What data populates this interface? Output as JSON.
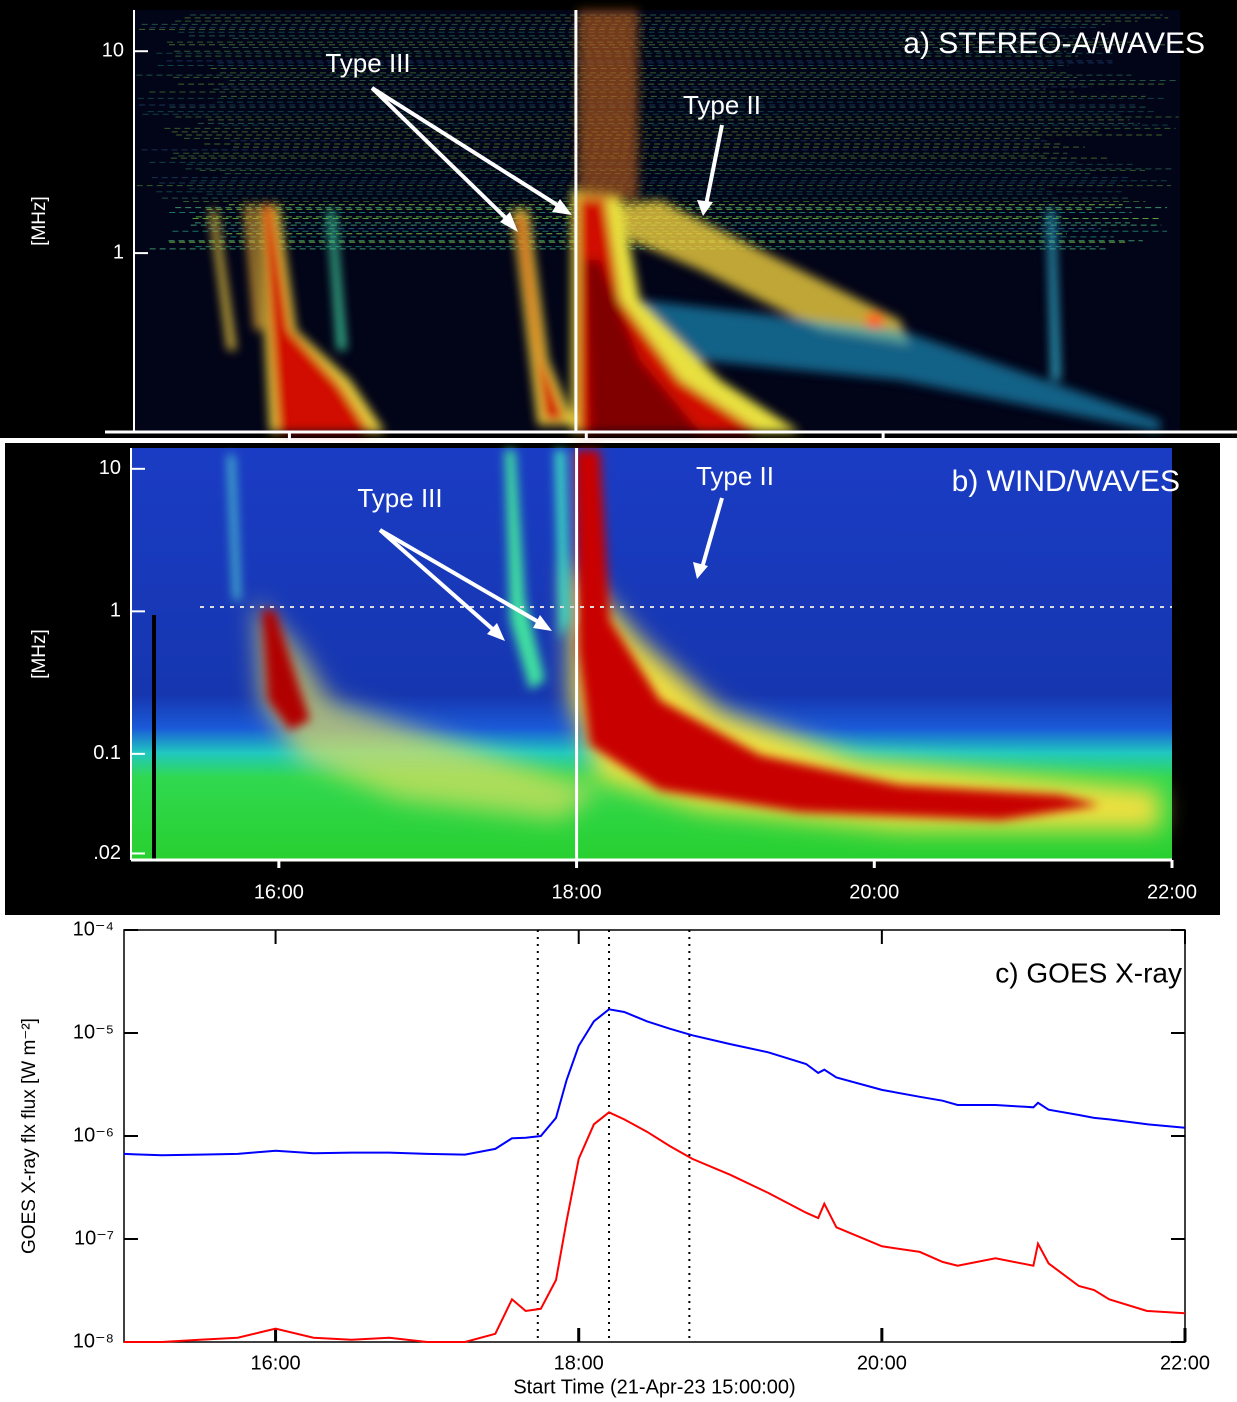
{
  "chart_data": [
    {
      "type": "spectrogram",
      "title": "a) STEREO-A/WAVES",
      "ylabel": "[MHz]",
      "log": true,
      "xlim": [
        15,
        22
      ],
      "xticks": [
        16,
        18,
        20
      ],
      "ylim": [
        0.13,
        16
      ],
      "yticks": [
        1,
        10
      ],
      "vlines": [
        17.93
      ],
      "annotations": [
        "Type III",
        "Type II"
      ]
    },
    {
      "type": "spectrogram",
      "title": "b) WIND/WAVES",
      "ylabel": "[MHz]",
      "log": true,
      "xlim": [
        15,
        22
      ],
      "xticks": [
        {
          "value": 16,
          "label": "16:00"
        },
        {
          "value": 18,
          "label": "18:00"
        },
        {
          "value": 20,
          "label": "20:00"
        },
        {
          "value": 22,
          "label": "22:00"
        }
      ],
      "ylim": [
        0.018,
        14
      ],
      "yticks": [
        10,
        1,
        0.1,
        {
          "value": 0.02,
          "label": ".02"
        }
      ],
      "vlines": [
        18.0
      ],
      "annotations": [
        "Type III",
        "Type II"
      ]
    },
    {
      "type": "line",
      "title": "c) GOES X-ray",
      "xlabel": "Start Time (21-Apr-23 15:00:00)",
      "ylabel": "GOES X-ray flx  flux [W m⁻²]",
      "log": true,
      "xlim": [
        15,
        22
      ],
      "xticks": [
        {
          "value": 16,
          "label": "16:00"
        },
        {
          "value": 18,
          "label": "18:00"
        },
        {
          "value": 20,
          "label": "20:00"
        },
        {
          "value": 22,
          "label": "22:00"
        }
      ],
      "ylim": [
        1e-08,
        0.0001
      ],
      "yticks": [
        {
          "value": 1e-08,
          "label": "10⁻⁸"
        },
        {
          "value": 1e-07,
          "label": "10⁻⁷"
        },
        {
          "value": 1e-06,
          "label": "10⁻⁶"
        },
        {
          "value": 1e-05,
          "label": "10⁻⁵"
        },
        {
          "value": 0.0001,
          "label": "10⁻⁴"
        }
      ],
      "vlines": [
        17.73,
        18.2,
        18.73
      ],
      "x": [
        15.0,
        15.25,
        15.5,
        15.75,
        16.0,
        16.25,
        16.5,
        16.75,
        17.0,
        17.25,
        17.45,
        17.56,
        17.65,
        17.75,
        17.85,
        17.92,
        18.0,
        18.1,
        18.2,
        18.3,
        18.45,
        18.6,
        18.75,
        19.0,
        19.25,
        19.5,
        19.58,
        19.62,
        19.7,
        20.0,
        20.25,
        20.4,
        20.5,
        20.75,
        21.0,
        21.03,
        21.1,
        21.3,
        21.4,
        21.5,
        21.75,
        22.0
      ],
      "series": [
        {
          "color": "#0000ff",
          "values": [
            6.7e-07,
            6.5e-07,
            6.6e-07,
            6.7e-07,
            7.2e-07,
            6.8e-07,
            6.9e-07,
            6.9e-07,
            6.7e-07,
            6.6e-07,
            7.5e-07,
            9.5e-07,
            9.6e-07,
            1e-06,
            1.5e-06,
            3.5e-06,
            7.5e-06,
            1.3e-05,
            1.7e-05,
            1.6e-05,
            1.3e-05,
            1.1e-05,
            9.5e-06,
            7.8e-06,
            6.5e-06,
            5e-06,
            4.1e-06,
            4.4e-06,
            3.7e-06,
            2.8e-06,
            2.4e-06,
            2.2e-06,
            2e-06,
            2e-06,
            1.9e-06,
            2.1e-06,
            1.8e-06,
            1.6e-06,
            1.5e-06,
            1.45e-06,
            1.3e-06,
            1.2e-06
          ]
        },
        {
          "color": "#ff0000",
          "values": [
            1e-08,
            1e-08,
            1.05e-08,
            1.1e-08,
            1.35e-08,
            1.1e-08,
            1.05e-08,
            1.1e-08,
            1e-08,
            1e-08,
            1.2e-08,
            2.6e-08,
            2e-08,
            2.1e-08,
            4e-08,
            1.5e-07,
            6e-07,
            1.3e-06,
            1.7e-06,
            1.45e-06,
            1.1e-06,
            8e-07,
            6e-07,
            4.2e-07,
            2.8e-07,
            1.8e-07,
            1.6e-07,
            2.2e-07,
            1.3e-07,
            8.5e-08,
            7.5e-08,
            6e-08,
            5.5e-08,
            6.5e-08,
            5.5e-08,
            9e-08,
            5.8e-08,
            3.5e-08,
            3.2e-08,
            2.6e-08,
            2e-08,
            1.9e-08
          ]
        }
      ]
    }
  ]
}
